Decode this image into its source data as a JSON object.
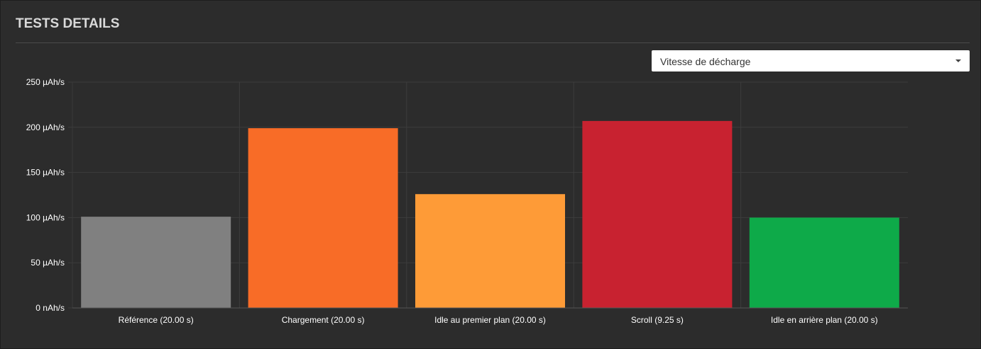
{
  "header": {
    "title": "TESTS DETAILS"
  },
  "selector": {
    "value": "Vitesse de décharge",
    "caret_icon": "caret-down-icon"
  },
  "chart_data": {
    "type": "bar",
    "categories": [
      "Référence (20.00 s)",
      "Chargement (20.00 s)",
      "Idle au premier plan (20.00 s)",
      "Scroll (9.25 s)",
      "Idle en arrière plan (20.00 s)"
    ],
    "values": [
      101,
      199,
      126,
      207,
      100
    ],
    "colors": [
      "#808080",
      "#f86c27",
      "#fe9b37",
      "#c82230",
      "#0eaa49"
    ],
    "ylim": [
      0,
      250
    ],
    "yticks": [
      0,
      50,
      100,
      150,
      200,
      250
    ],
    "ytick_labels": [
      "0 nAh/s",
      "50 µAh/s",
      "100 µAh/s",
      "150 µAh/s",
      "200 µAh/s",
      "250 µAh/s"
    ],
    "title": "",
    "xlabel": "",
    "ylabel": "",
    "grid": true,
    "gridline_color": "#3d3d3d"
  }
}
